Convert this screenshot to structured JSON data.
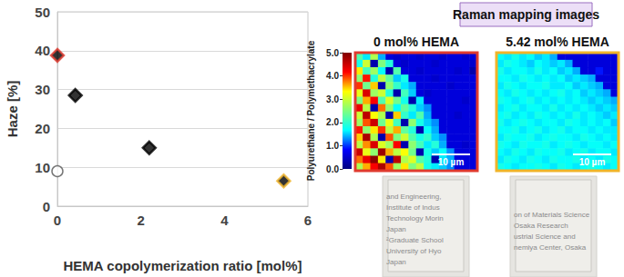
{
  "chart_data": [
    {
      "type": "scatter",
      "x_label": "HEMA copolymerization ratio [mol%]",
      "y_label": "Haze [%]",
      "xlim": [
        0,
        6
      ],
      "xticks": [
        0,
        2,
        4,
        6
      ],
      "ylim": [
        0,
        50
      ],
      "yticks": [
        0,
        10,
        20,
        30,
        40,
        50
      ],
      "grid": true,
      "series": [
        {
          "marker": "diamond",
          "color": "#000000",
          "colors": [
            "#e03a2e",
            "#000000",
            "#000000",
            "#f0b429"
          ],
          "x": [
            0,
            0.43,
            2.2,
            5.42
          ],
          "values": [
            38.8,
            28.5,
            15,
            6.5
          ]
        },
        {
          "marker": "circle",
          "color": "#ffffff",
          "x": [
            0
          ],
          "values": [
            9
          ]
        }
      ]
    },
    {
      "type": "heatmap",
      "title": "Raman mapping images",
      "color_bar": {
        "label": "Polyurethane / Polymethacrylate",
        "range": [
          0,
          5
        ],
        "ticks": [
          {
            "value": 0,
            "label": "0.0"
          },
          {
            "value": 1,
            "label": "1.0"
          },
          {
            "value": 2,
            "label": "2.0"
          },
          {
            "value": 3,
            "label": "3.0"
          },
          {
            "value": 4,
            "label": "4.0"
          },
          {
            "value": 5,
            "label": "5.0"
          }
        ]
      },
      "maps": [
        {
          "title": "0 mol% HEMA",
          "color": "#e03a2e",
          "scale_bar": "10 µm",
          "cells": [
            [
              2.2,
              1.6,
              2.8,
              1.4,
              0.6,
              0.5,
              0.6,
              0.6,
              0.5,
              0.6,
              0.6,
              0.5,
              0.6,
              0.6,
              0.5,
              0.6
            ],
            [
              1.8,
              3.0,
              0.3,
              2.5,
              1.9,
              0.6,
              0.5,
              0.6,
              0.6,
              0.6,
              0.5,
              0.6,
              0.6,
              0.6,
              0.6,
              0.5
            ],
            [
              3.4,
              2.1,
              2.7,
              1.7,
              0.3,
              2.2,
              0.6,
              0.6,
              0.5,
              0.6,
              0.6,
              0.6,
              0.6,
              0.5,
              0.6,
              0.3
            ],
            [
              2.6,
              4.1,
              1.9,
              2.9,
              2.3,
              1.5,
              1.8,
              0.6,
              0.6,
              0.6,
              0.5,
              0.6,
              0.6,
              0.6,
              0.6,
              0.6
            ],
            [
              4.0,
              2.4,
              3.5,
              0.3,
              2.6,
              2.0,
              1.6,
              1.4,
              0.6,
              0.6,
              0.6,
              0.6,
              0.5,
              0.6,
              0.6,
              0.6
            ],
            [
              3.2,
              4.4,
              2.7,
              3.0,
              1.9,
              0.3,
              2.1,
              1.5,
              0.6,
              0.5,
              0.6,
              0.6,
              0.6,
              0.6,
              0.6,
              0.6
            ],
            [
              2.5,
              3.6,
              4.2,
              2.2,
              3.1,
              2.4,
              1.8,
              0.3,
              1.6,
              0.6,
              0.6,
              0.6,
              0.6,
              0.6,
              0.5,
              0.6
            ],
            [
              4.3,
              2.9,
              0.3,
              3.8,
              2.6,
              1.7,
              2.3,
              1.9,
              1.5,
              1.3,
              0.6,
              0.6,
              0.6,
              0.6,
              0.6,
              0.6
            ],
            [
              3.0,
              4.6,
              3.3,
              2.8,
              0.3,
              3.5,
              2.0,
              1.6,
              2.2,
              1.4,
              0.6,
              0.6,
              0.6,
              0.5,
              0.6,
              0.6
            ],
            [
              2.7,
              3.9,
              4.5,
              2.4,
              3.2,
              2.1,
              0.3,
              2.6,
              1.8,
              1.5,
              1.3,
              0.6,
              0.6,
              0.6,
              0.6,
              0.6
            ],
            [
              4.1,
              2.6,
              3.4,
              4.0,
              2.9,
              3.6,
              2.3,
              1.9,
              0.3,
              1.7,
              1.4,
              0.6,
              0.6,
              0.6,
              0.6,
              0.6
            ],
            [
              3.5,
              4.7,
              2.8,
              0.3,
              3.9,
              2.5,
              3.0,
              2.2,
              1.8,
              2.0,
              1.5,
              1.3,
              0.6,
              0.6,
              0.6,
              0.6
            ],
            [
              2.9,
              3.7,
              4.4,
              3.1,
              2.7,
              4.2,
              0.3,
              2.6,
              2.1,
              1.6,
              1.9,
              1.4,
              0.6,
              0.6,
              0.5,
              0.6
            ],
            [
              4.5,
              3.2,
              2.6,
              4.8,
              3.6,
              2.9,
              3.3,
              2.4,
              0.3,
              1.8,
              1.5,
              1.7,
              1.3,
              0.6,
              0.6,
              0.6
            ],
            [
              3.8,
              4.3,
              4.9,
              3.4,
              0.3,
              4.6,
              2.8,
              3.1,
              2.2,
              1.9,
              0.3,
              1.6,
              1.4,
              0.6,
              0.6,
              0.6
            ],
            [
              2.8,
              3.6,
              4.2,
              4.7,
              3.9,
              2.7,
              3.4,
              2.5,
              2.9,
              1.8,
              1.6,
              1.5,
              1.3,
              0.6,
              0.6,
              0.6
            ]
          ]
        },
        {
          "title": "5.42 mol% HEMA",
          "color": "#f0b429",
          "scale_bar": "10 µm",
          "cells": [
            [
              1.7,
              1.6,
              1.8,
              1.6,
              1.7,
              1.5,
              1.6,
              1.4,
              0.6,
              0.6,
              0.6,
              0.6,
              0.6,
              0.6,
              0.6,
              0.6
            ],
            [
              1.6,
              1.8,
              1.7,
              1.6,
              1.5,
              1.7,
              1.6,
              1.5,
              1.6,
              1.4,
              0.6,
              0.6,
              0.6,
              0.6,
              0.6,
              0.6
            ],
            [
              1.8,
              1.6,
              1.7,
              1.7,
              1.6,
              1.8,
              1.6,
              1.7,
              1.5,
              1.6,
              1.4,
              0.6,
              0.6,
              0.9,
              0.6,
              0.6
            ],
            [
              1.7,
              1.7,
              1.6,
              1.8,
              1.7,
              1.6,
              1.7,
              1.6,
              1.7,
              1.5,
              1.6,
              1.5,
              1.4,
              0.6,
              0.6,
              0.6
            ],
            [
              1.6,
              1.8,
              1.7,
              1.6,
              1.7,
              1.7,
              1.8,
              1.6,
              1.6,
              1.7,
              1.5,
              1.6,
              1.5,
              1.4,
              0.6,
              0.6
            ],
            [
              1.7,
              1.6,
              1.8,
              1.7,
              1.6,
              1.7,
              1.6,
              1.7,
              1.8,
              1.6,
              1.7,
              1.5,
              1.6,
              1.5,
              1.4,
              0.6
            ],
            [
              1.8,
              1.7,
              1.6,
              1.7,
              1.8,
              1.6,
              1.7,
              1.6,
              1.7,
              1.6,
              1.7,
              1.6,
              1.5,
              1.6,
              1.5,
              1.4
            ],
            [
              1.6,
              1.7,
              1.8,
              1.6,
              1.7,
              1.7,
              1.6,
              1.8,
              1.6,
              1.7,
              1.6,
              1.7,
              1.6,
              1.5,
              1.6,
              1.5
            ],
            [
              1.7,
              1.8,
              1.6,
              1.7,
              1.6,
              1.8,
              1.7,
              1.6,
              1.7,
              1.6,
              1.8,
              1.6,
              1.7,
              1.6,
              1.5,
              1.6
            ],
            [
              1.8,
              1.6,
              1.7,
              1.8,
              1.7,
              1.6,
              1.7,
              1.7,
              1.6,
              1.8,
              1.7,
              1.6,
              1.7,
              1.6,
              1.7,
              1.5
            ],
            [
              1.7,
              1.7,
              1.8,
              1.6,
              1.7,
              1.8,
              1.6,
              1.7,
              1.8,
              1.6,
              1.7,
              1.7,
              1.6,
              1.7,
              1.6,
              1.6
            ],
            [
              1.6,
              1.8,
              1.7,
              1.7,
              1.8,
              1.6,
              1.7,
              1.8,
              1.7,
              1.7,
              1.6,
              1.8,
              1.7,
              1.6,
              1.7,
              1.6
            ],
            [
              1.8,
              1.7,
              1.6,
              1.8,
              1.7,
              1.7,
              1.8,
              1.6,
              1.7,
              1.8,
              1.7,
              1.6,
              1.7,
              1.7,
              1.6,
              1.7
            ],
            [
              1.7,
              1.6,
              1.8,
              1.7,
              1.6,
              1.8,
              1.7,
              1.7,
              1.8,
              1.6,
              1.7,
              1.8,
              1.6,
              1.7,
              1.7,
              1.6
            ],
            [
              1.6,
              1.8,
              1.7,
              1.6,
              1.8,
              1.7,
              1.6,
              1.8,
              1.7,
              1.7,
              1.8,
              1.6,
              1.7,
              1.6,
              1.8,
              1.7
            ],
            [
              1.8,
              1.7,
              1.6,
              1.7,
              1.7,
              1.8,
              1.7,
              1.6,
              1.8,
              1.7,
              1.6,
              1.7,
              1.8,
              1.7,
              1.6,
              1.7
            ]
          ]
        }
      ],
      "photos": [
        {
          "lines": [
            "and Engineering,",
            "Institute of Indus",
            "Technology Morin",
            "Japan",
            "²Graduate School",
            "University of Hyo",
            "Japan"
          ]
        },
        {
          "lines": [
            "on of Materials Science",
            "Osaka Research",
            "ustrial Science and",
            "nemiya Center, Osaka"
          ]
        }
      ]
    }
  ]
}
